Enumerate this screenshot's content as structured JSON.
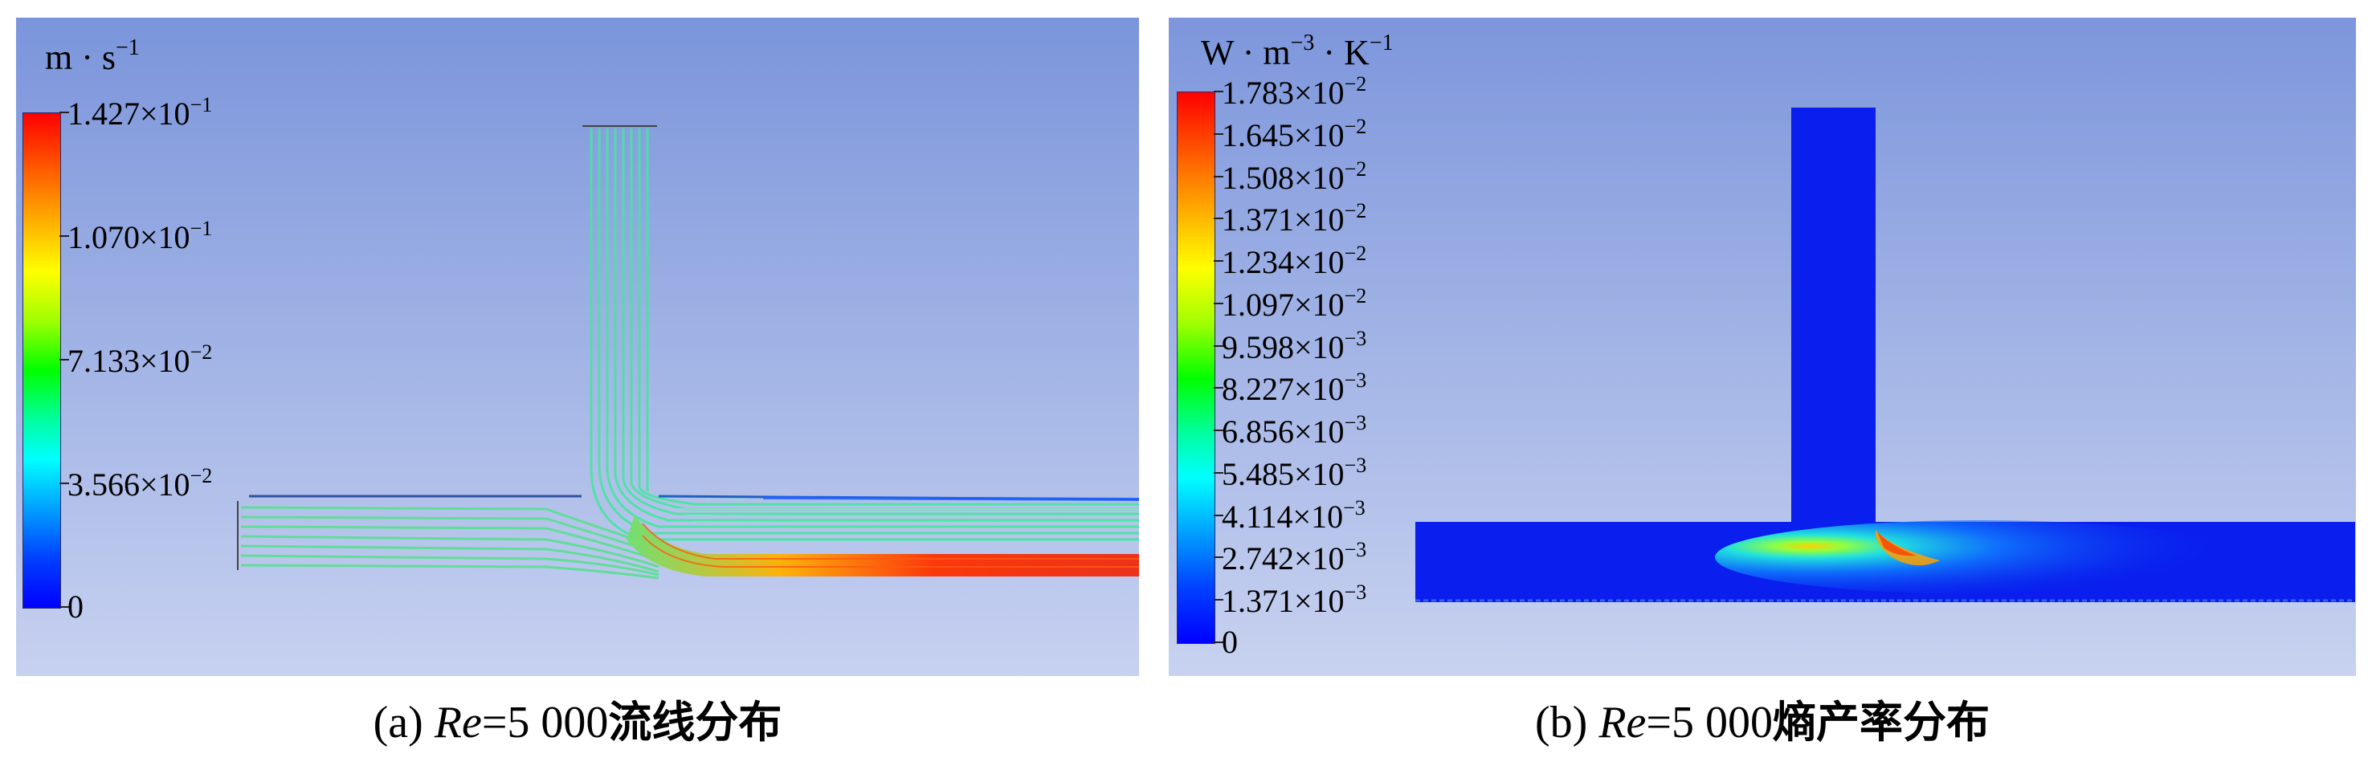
{
  "panel_a": {
    "unit": {
      "base": "m · s",
      "exp": "−1"
    },
    "ticks": [
      {
        "mant": "1.427×10",
        "exp": "−1"
      },
      {
        "mant": "1.070×10",
        "exp": "−1"
      },
      {
        "mant": "7.133×10",
        "exp": "−2"
      },
      {
        "mant": "3.566×10",
        "exp": "−2"
      },
      {
        "mant": "0",
        "exp": ""
      }
    ],
    "caption": {
      "prefix": "(a) ",
      "re": "Re",
      "value": "=5 000",
      "title": "流线分布"
    }
  },
  "panel_b": {
    "unit": {
      "base1": "W · m",
      "exp1": "−3",
      "base2": " · K",
      "exp2": "−1"
    },
    "ticks": [
      {
        "mant": "1.783×10",
        "exp": "−2"
      },
      {
        "mant": "1.645×10",
        "exp": "−2"
      },
      {
        "mant": "1.508×10",
        "exp": "−2"
      },
      {
        "mant": "1.371×10",
        "exp": "−2"
      },
      {
        "mant": "1.234×10",
        "exp": "−2"
      },
      {
        "mant": "1.097×10",
        "exp": "−2"
      },
      {
        "mant": "9.598×10",
        "exp": "−3"
      },
      {
        "mant": "8.227×10",
        "exp": "−3"
      },
      {
        "mant": "6.856×10",
        "exp": "−3"
      },
      {
        "mant": "5.485×10",
        "exp": "−3"
      },
      {
        "mant": "4.114×10",
        "exp": "−3"
      },
      {
        "mant": "2.742×10",
        "exp": "−3"
      },
      {
        "mant": "1.371×10",
        "exp": "−3"
      },
      {
        "mant": "0",
        "exp": ""
      }
    ],
    "caption": {
      "prefix": "(b) ",
      "re": "Re",
      "value": "=5 000",
      "title": "熵产率分布"
    }
  },
  "colors": {
    "background_top": "#7d97dc",
    "background_bottom": "#c6d0ef",
    "domain_blue": "#0a1eee",
    "streamline_green": "#3ce6a0",
    "streamline_red": "#f03010"
  }
}
